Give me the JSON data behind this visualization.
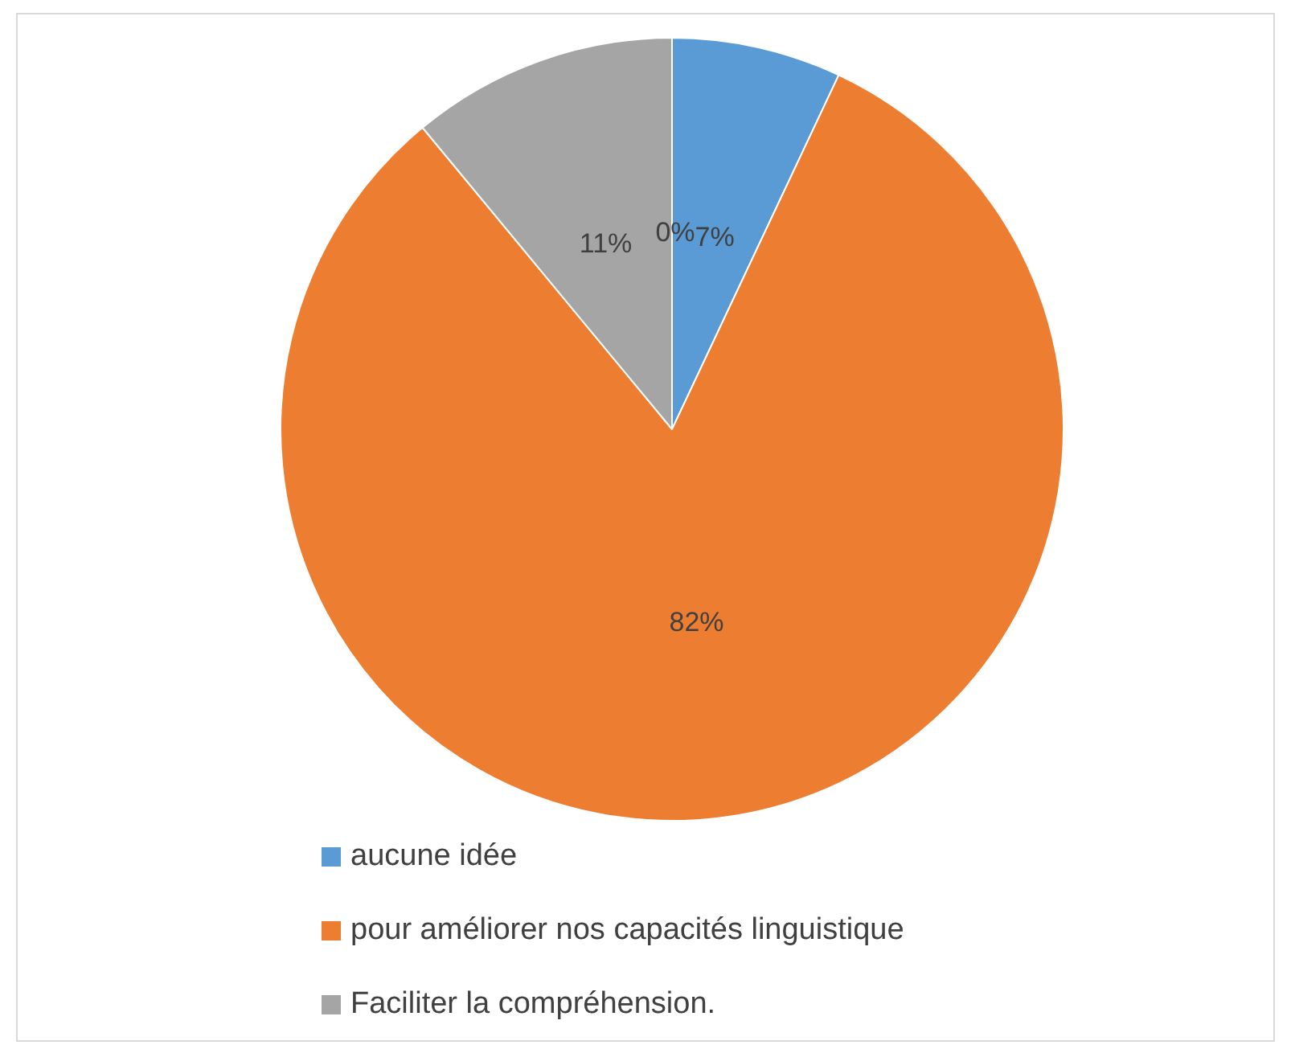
{
  "chart_data": {
    "type": "pie",
    "categories": [
      "aucune idée",
      "pour améliorer nos capacités linguistique",
      "Faciliter la compréhension.",
      null
    ],
    "values": [
      7,
      82,
      11,
      0
    ],
    "colors": [
      "#5b9bd5",
      "#ed7d31",
      "#a5a5a5",
      "#ffc000"
    ],
    "value_labels": [
      "7%",
      "82%",
      "11%",
      "0%"
    ],
    "legend": "bottom left"
  }
}
